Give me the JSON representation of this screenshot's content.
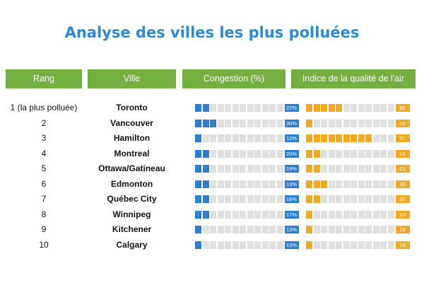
{
  "title": "Analyse des villes les plus polluées",
  "headers": {
    "rank": "Rang",
    "city": "Ville",
    "congestion": "Congestion (%)",
    "air": "Indice de la qualité de l'air"
  },
  "colors": {
    "title": "#2a8ad8",
    "header_bg": "#74b03f",
    "congestion": "#2a7fd4",
    "air": "#f3a91f",
    "empty_segment": "#e0e0e0"
  },
  "chart_data": {
    "type": "table",
    "title": "Analyse des villes les plus polluées",
    "columns": [
      "Rang",
      "Ville",
      "Congestion (%)",
      "Indice de la qualité de l'air"
    ],
    "rows": [
      {
        "rank": "1 (la plus polluée)",
        "city": "Toronto",
        "congestion": 22,
        "congestion_label": "22%",
        "aqi": 50,
        "aqi_label": "50"
      },
      {
        "rank": "2",
        "city": "Vancouver",
        "congestion": 30,
        "congestion_label": "30%",
        "aqi": 10,
        "aqi_label": "10"
      },
      {
        "rank": "3",
        "city": "Hamilton",
        "congestion": 12,
        "congestion_label": "12%",
        "aqi": 57,
        "aqi_label": "57"
      },
      {
        "rank": "4",
        "city": "Montreal",
        "congestion": 20,
        "congestion_label": "20%",
        "aqi": 24,
        "aqi_label": "24"
      },
      {
        "rank": "5",
        "city": "Ottawa/Gatineau",
        "congestion": 19,
        "congestion_label": "19%",
        "aqi": 23,
        "aqi_label": "23"
      },
      {
        "rank": "6",
        "city": "Edmonton",
        "congestion": 13,
        "congestion_label": "13%",
        "aqi": 30,
        "aqi_label": "30"
      },
      {
        "rank": "7",
        "city": "Québec City",
        "congestion": 16,
        "congestion_label": "16%",
        "aqi": 20,
        "aqi_label": "20"
      },
      {
        "rank": "8",
        "city": "Winnipeg",
        "congestion": 17,
        "congestion_label": "17%",
        "aqi": 10,
        "aqi_label": "10"
      },
      {
        "rank": "9",
        "city": "Kitchener",
        "congestion": 13,
        "congestion_label": "13%",
        "aqi": 19,
        "aqi_label": "19"
      },
      {
        "rank": "10",
        "city": "Calgary",
        "congestion": 13,
        "congestion_label": "13%",
        "aqi": 19,
        "aqi_label": "19"
      }
    ],
    "congestion_filled_segments": [
      2,
      3,
      1,
      2,
      2,
      2,
      2,
      2,
      1,
      1
    ],
    "air_filled_segments": [
      5,
      1,
      9,
      2,
      2,
      3,
      2,
      1,
      1,
      1
    ],
    "segments_per_bar": 12
  }
}
